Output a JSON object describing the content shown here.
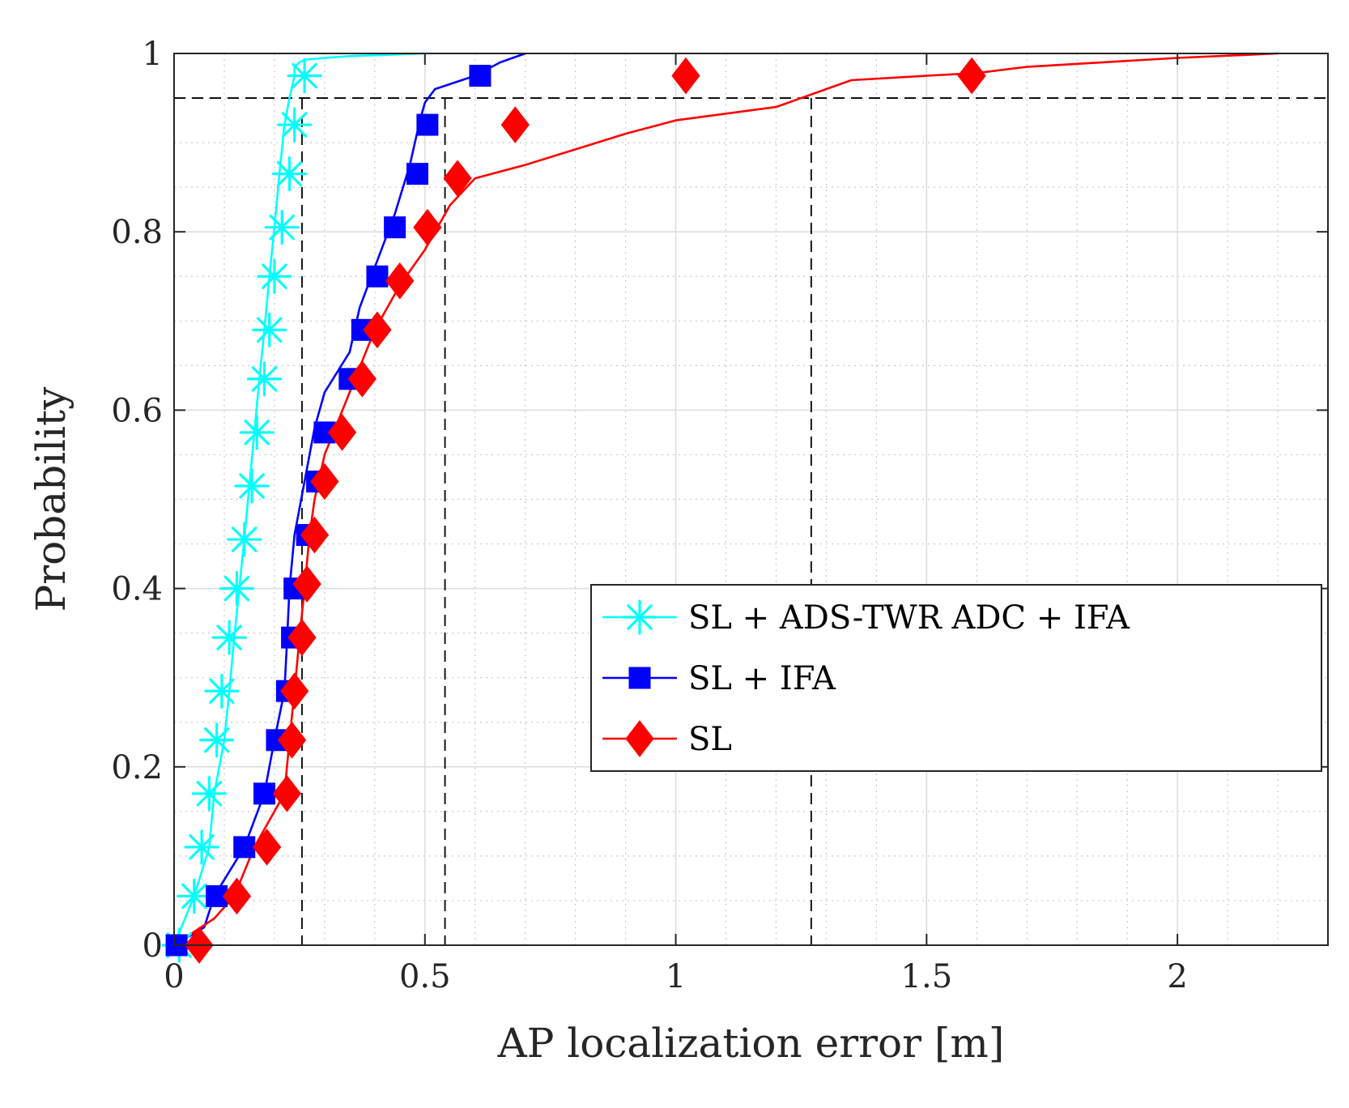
{
  "chart_data": {
    "type": "line",
    "title": "",
    "xlabel": "AP localization error [m]",
    "ylabel": "Probability",
    "xlim": [
      0,
      2.3
    ],
    "ylim": [
      0,
      1
    ],
    "xticks": [
      0,
      0.5,
      1,
      1.5,
      2
    ],
    "xtick_labels": [
      "0",
      "0.5",
      "1",
      "1.5",
      "2"
    ],
    "yticks": [
      0,
      0.2,
      0.4,
      0.6,
      0.8,
      1
    ],
    "ytick_labels": [
      "0",
      "0.2",
      "0.4",
      "0.6",
      "0.8",
      "1"
    ],
    "xminor_step": 0.1,
    "yminor_step": 0.05,
    "grid": true,
    "legend_position": "center-right",
    "reference_lines": {
      "horizontal": [
        0.95
      ],
      "vertical": [
        0.255,
        0.54,
        1.27
      ]
    },
    "series": [
      {
        "name": "SL + ADS-TWR ADC + IFA",
        "color": "#00ffff",
        "marker": "asterisk",
        "x": [
          0.0,
          0.04,
          0.07,
          0.08,
          0.1,
          0.11,
          0.12,
          0.13,
          0.14,
          0.15,
          0.16,
          0.17,
          0.18,
          0.19,
          0.2,
          0.21,
          0.22,
          0.23,
          0.24,
          0.24,
          0.25,
          0.26,
          0.3,
          0.35,
          0.4,
          0.5
        ],
        "y": [
          0.0,
          0.055,
          0.11,
          0.17,
          0.23,
          0.285,
          0.345,
          0.4,
          0.455,
          0.515,
          0.575,
          0.635,
          0.69,
          0.75,
          0.805,
          0.865,
          0.92,
          0.95,
          0.975,
          0.985,
          0.99,
          0.993,
          0.995,
          0.997,
          0.998,
          1.0
        ],
        "marker_x": [
          0.01,
          0.04,
          0.055,
          0.07,
          0.085,
          0.095,
          0.11,
          0.125,
          0.14,
          0.155,
          0.165,
          0.18,
          0.19,
          0.2,
          0.215,
          0.23,
          0.24,
          0.26
        ],
        "marker_y": [
          0.0,
          0.055,
          0.11,
          0.17,
          0.23,
          0.285,
          0.345,
          0.4,
          0.455,
          0.515,
          0.575,
          0.635,
          0.69,
          0.75,
          0.805,
          0.865,
          0.92,
          0.975
        ]
      },
      {
        "name": "SL + IFA",
        "color": "#0000ff",
        "marker": "square",
        "x": [
          0.0,
          0.06,
          0.08,
          0.14,
          0.18,
          0.2,
          0.22,
          0.225,
          0.23,
          0.24,
          0.26,
          0.28,
          0.3,
          0.35,
          0.37,
          0.4,
          0.44,
          0.47,
          0.49,
          0.5,
          0.52,
          0.6,
          0.65,
          0.7
        ],
        "y": [
          0.0,
          0.02,
          0.055,
          0.11,
          0.17,
          0.23,
          0.285,
          0.34,
          0.4,
          0.46,
          0.52,
          0.58,
          0.62,
          0.665,
          0.715,
          0.76,
          0.82,
          0.875,
          0.925,
          0.945,
          0.96,
          0.975,
          0.99,
          1.0
        ],
        "marker_x": [
          0.005,
          0.085,
          0.14,
          0.18,
          0.205,
          0.225,
          0.235,
          0.24,
          0.265,
          0.285,
          0.3,
          0.35,
          0.375,
          0.405,
          0.44,
          0.485,
          0.505,
          0.61
        ],
        "marker_y": [
          0.0,
          0.055,
          0.11,
          0.17,
          0.23,
          0.285,
          0.345,
          0.4,
          0.46,
          0.52,
          0.575,
          0.635,
          0.69,
          0.75,
          0.805,
          0.865,
          0.92,
          0.975
        ]
      },
      {
        "name": "SL",
        "color": "#ff0000",
        "marker": "diamond",
        "x": [
          0.0,
          0.08,
          0.12,
          0.16,
          0.22,
          0.23,
          0.24,
          0.25,
          0.26,
          0.27,
          0.28,
          0.3,
          0.35,
          0.4,
          0.45,
          0.5,
          0.52,
          0.55,
          0.6,
          0.7,
          0.9,
          1.0,
          1.2,
          1.3,
          1.35,
          1.5,
          1.6,
          1.7,
          2.0,
          2.2
        ],
        "y": [
          0.0,
          0.03,
          0.055,
          0.11,
          0.17,
          0.23,
          0.285,
          0.345,
          0.4,
          0.46,
          0.5,
          0.55,
          0.62,
          0.69,
          0.74,
          0.78,
          0.8,
          0.83,
          0.86,
          0.875,
          0.91,
          0.925,
          0.94,
          0.96,
          0.97,
          0.975,
          0.978,
          0.985,
          0.995,
          1.0
        ],
        "marker_x": [
          0.05,
          0.125,
          0.185,
          0.225,
          0.235,
          0.24,
          0.255,
          0.265,
          0.28,
          0.3,
          0.335,
          0.375,
          0.405,
          0.45,
          0.505,
          0.565,
          0.68,
          1.02,
          1.59
        ],
        "marker_y": [
          0.0,
          0.055,
          0.11,
          0.17,
          0.23,
          0.285,
          0.345,
          0.405,
          0.46,
          0.52,
          0.575,
          0.635,
          0.69,
          0.745,
          0.805,
          0.86,
          0.92,
          0.975,
          0.975
        ]
      }
    ]
  }
}
